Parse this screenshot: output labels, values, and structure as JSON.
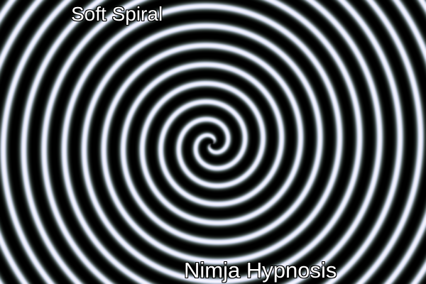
{
  "overlay": {
    "top_text": "Soft Spiral",
    "bottom_text": "Nimja Hypnosis"
  },
  "spiral": {
    "arms": 2,
    "colors": {
      "background": "#000000",
      "band_mid": "#7a968a",
      "highlight": "#f6f6ff",
      "tint": "#c8cfee"
    }
  }
}
